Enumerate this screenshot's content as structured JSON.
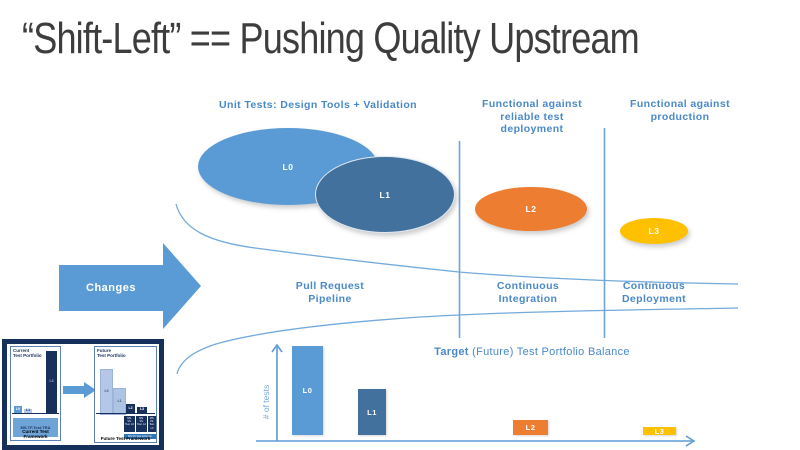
{
  "title": "“Shift-Left” == Pushing Quality Upstream",
  "colors": {
    "accent_blue": "#5B9BD5",
    "dark_blue": "#41719C",
    "orange": "#ED7D31",
    "gold": "#FFC000",
    "label_blue": "#4A89C8",
    "navy": "#17305C",
    "pale_blue": "#B4C7E7",
    "title_gray": "#3D3D3D"
  },
  "stage_headers": {
    "unit": {
      "line1": "Unit Tests: Design Tools + Validation"
    },
    "test_deploy": {
      "line1": "Functional against",
      "line2": "reliable test",
      "line3": "deployment"
    },
    "production": {
      "line1": "Functional against",
      "line2": "production"
    }
  },
  "test_levels": {
    "l0": "L0",
    "l1": "L1",
    "l2": "L2",
    "l3": "L3"
  },
  "changes_arrow": {
    "label": "Changes"
  },
  "pipeline_stages": {
    "pull_request": {
      "line1": "Pull Request",
      "line2": "Pipeline"
    },
    "continuous_integration": {
      "line1": "Continuous",
      "line2": "Integration"
    },
    "continuous_deployment": {
      "line1": "Continuous",
      "line2": "Deployment"
    }
  },
  "chart_data": {
    "type": "bar",
    "title": "Target (Future) Test Portfolio Balance",
    "title_bold": "Target",
    "title_rest": " (Future) Test Portfolio Balance",
    "categories": [
      "L0",
      "L1",
      "L2",
      "L3"
    ],
    "values": [
      100,
      52,
      17,
      9
    ],
    "bar_colors": [
      "#5B9BD5",
      "#41719C",
      "#ED7D31",
      "#FFC000"
    ],
    "ylabel": "# of tests",
    "xlabel": "",
    "ylim": [
      0,
      100
    ],
    "grid": "off",
    "legend": "none",
    "note": "values are relative bar heights; axes are unlabeled arrows"
  },
  "inset": {
    "current": {
      "title_line1": "Current",
      "title_line2": "Test Portfolio",
      "bar_l0": "L0",
      "bar_l1": "L1",
      "bar_l3": "L3",
      "framework_box": "MS.TF.Test.TRA",
      "caption": "Current Test Framework"
    },
    "future": {
      "title_line1": "Future",
      "title_line2": "Test Portfolio",
      "bar_l0": "L0",
      "bar_l1": "L1",
      "bar_l2": "L2",
      "bar_l3": "L3",
      "component_box1": "MS. VS. Test. L0",
      "component_box2": "MS. VS. Test. L2",
      "component_box3": "MS. VS. Test. L3",
      "base_box": "MS.VS.Test.Common",
      "caption": "Future Test Framework"
    }
  }
}
